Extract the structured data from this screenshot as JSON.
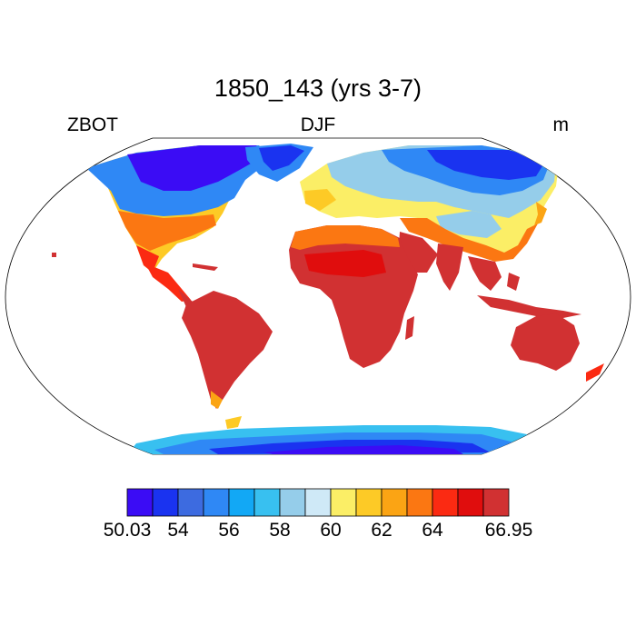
{
  "header": {
    "title": "1850_143 (yrs 3-7)",
    "left_label": "ZBOT",
    "center_label": "DJF",
    "right_label": "m"
  },
  "colorbar": {
    "colors": [
      "#3b0cf5",
      "#1a33f0",
      "#3d6be0",
      "#2f88f5",
      "#12a8f5",
      "#38c0f0",
      "#95cdea",
      "#cfe9f7",
      "#fbee66",
      "#fdca26",
      "#fba414",
      "#fb7712",
      "#fb2a12",
      "#e00d0d",
      "#d13132"
    ],
    "labels": [
      "50.03",
      "54",
      "56",
      "58",
      "60",
      "62",
      "64",
      "66.95"
    ]
  }
}
